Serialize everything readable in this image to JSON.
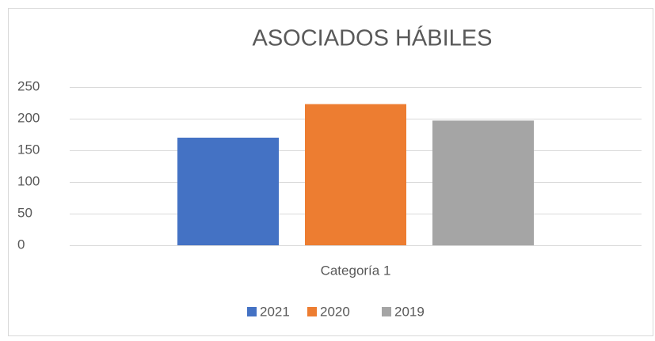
{
  "chart_data": {
    "type": "bar",
    "title": "ASOCIADOS HÁBILES",
    "categories": [
      "Categoría 1"
    ],
    "series": [
      {
        "name": "2021",
        "color": "#4472c4",
        "values": [
          170
        ]
      },
      {
        "name": "2020",
        "color": "#ed7d31",
        "values": [
          223
        ]
      },
      {
        "name": "2019",
        "color": "#a5a5a5",
        "values": [
          197
        ]
      }
    ],
    "ylim": [
      0,
      250
    ],
    "yticks": [
      0,
      50,
      100,
      150,
      200,
      250
    ],
    "grid": true,
    "legend": "bottom"
  }
}
